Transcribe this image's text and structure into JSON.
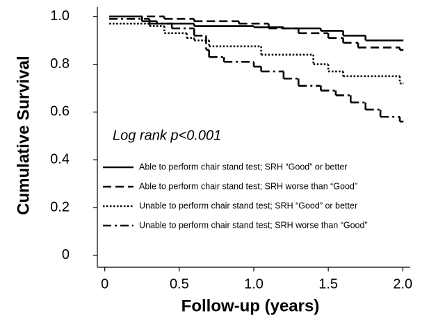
{
  "chart_data": {
    "type": "step",
    "x_label": "Follow-up (years)",
    "y_label": "Cumulative Survival",
    "annotation": "Log rank p<0.001",
    "xlim": [
      -0.05,
      2.05
    ],
    "ylim": [
      -0.05,
      1.04
    ],
    "xticks": [
      0,
      0.5,
      {
        "value": 1,
        "label": "1.0"
      },
      1.5,
      {
        "value": 2,
        "label": "2.0"
      }
    ],
    "yticks": [
      0,
      0.2,
      0.4,
      0.6,
      0.8,
      {
        "value": 1,
        "label": "1.0"
      }
    ],
    "grid": false,
    "series": [
      {
        "name": "Able to perform chair stand test; SRH “Good” or better",
        "color": "#000000",
        "dash": "solid",
        "x": [
          0.03,
          0.25,
          0.35,
          0.6,
          1.0,
          1.2,
          1.45,
          1.6,
          1.75,
          2.0
        ],
        "values": [
          1.0,
          0.98,
          0.97,
          0.96,
          0.955,
          0.95,
          0.94,
          0.92,
          0.9,
          0.9
        ]
      },
      {
        "name": "Able to perform chair stand test; SRH worse than “Good”",
        "color": "#000000",
        "dash": "dashed",
        "x": [
          0.03,
          0.4,
          0.6,
          0.9,
          1.1,
          1.3,
          1.5,
          1.6,
          1.7,
          1.98,
          2.0
        ],
        "values": [
          1.0,
          0.99,
          0.98,
          0.97,
          0.95,
          0.93,
          0.91,
          0.89,
          0.87,
          0.86,
          0.86
        ]
      },
      {
        "name": "Unable to perform chair stand test; SRH “Good” or better",
        "color": "#000000",
        "dash": "dotted",
        "x": [
          0.03,
          0.3,
          0.4,
          0.55,
          0.6,
          0.7,
          1.05,
          1.4,
          1.5,
          1.6,
          1.98,
          2.0
        ],
        "values": [
          0.97,
          0.96,
          0.93,
          0.91,
          0.9,
          0.875,
          0.84,
          0.8,
          0.77,
          0.75,
          0.72,
          0.72
        ]
      },
      {
        "name": "Unable to perform chair stand test; SRH worse than “Good”",
        "color": "#000000",
        "dash": "dashdot",
        "x": [
          0.03,
          0.3,
          0.45,
          0.6,
          0.68,
          0.7,
          0.8,
          1.0,
          1.05,
          1.2,
          1.3,
          1.45,
          1.55,
          1.65,
          1.75,
          1.85,
          1.98,
          2.0
        ],
        "values": [
          0.99,
          0.97,
          0.95,
          0.92,
          0.86,
          0.83,
          0.81,
          0.79,
          0.77,
          0.74,
          0.71,
          0.69,
          0.67,
          0.64,
          0.61,
          0.58,
          0.56,
          0.56
        ]
      }
    ]
  }
}
